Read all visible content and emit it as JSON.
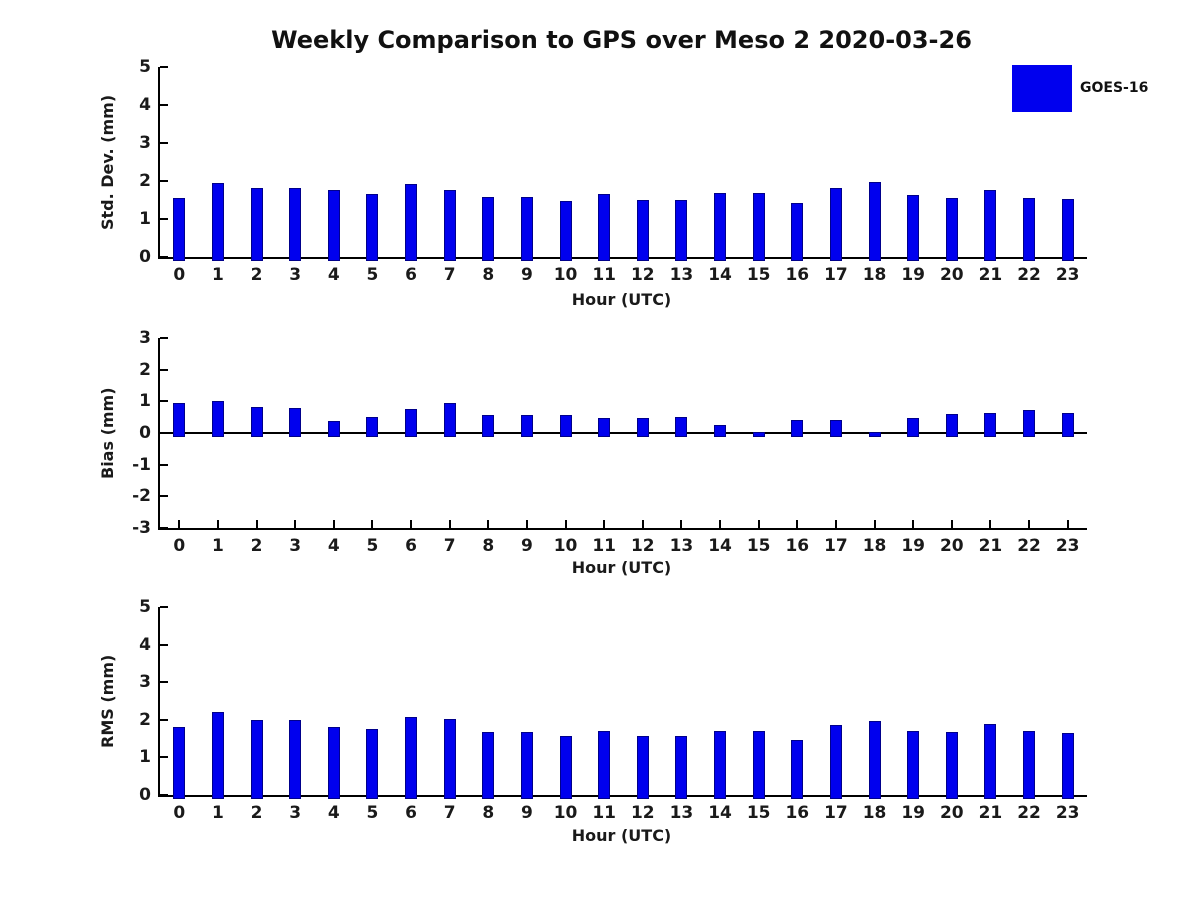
{
  "title": "Weekly Comparison to GPS over Meso 2 2020-03-26",
  "legend": {
    "label": "GOES-16",
    "position": "upper right"
  },
  "colors": {
    "bar": "#0000ee",
    "bar_edge": "#00008b",
    "axis": "#000000",
    "text": "#1a1a1a"
  },
  "chart_data": [
    {
      "type": "bar",
      "title": "",
      "xlabel": "Hour (UTC)",
      "ylabel": "Std. Dev. (mm)",
      "ylim": [
        0,
        5
      ],
      "yticks": [
        0,
        1,
        2,
        3,
        4,
        5
      ],
      "grid": false,
      "categories": [
        "0",
        "1",
        "2",
        "3",
        "4",
        "5",
        "6",
        "7",
        "8",
        "9",
        "10",
        "11",
        "12",
        "13",
        "14",
        "15",
        "16",
        "17",
        "18",
        "19",
        "20",
        "21",
        "22",
        "23"
      ],
      "series": [
        {
          "name": "GOES-16",
          "values": [
            1.55,
            1.95,
            1.82,
            1.82,
            1.77,
            1.67,
            1.92,
            1.77,
            1.59,
            1.59,
            1.48,
            1.66,
            1.5,
            1.5,
            1.68,
            1.68,
            1.42,
            1.81,
            1.97,
            1.63,
            1.56,
            1.77,
            1.56,
            1.52
          ]
        }
      ]
    },
    {
      "type": "bar",
      "title": "",
      "xlabel": "Hour (UTC)",
      "ylabel": "Bias (mm)",
      "ylim": [
        -3,
        3
      ],
      "yticks": [
        -3,
        -2,
        -1,
        0,
        1,
        2,
        3
      ],
      "grid": false,
      "categories": [
        "0",
        "1",
        "2",
        "3",
        "4",
        "5",
        "6",
        "7",
        "8",
        "9",
        "10",
        "11",
        "12",
        "13",
        "14",
        "15",
        "16",
        "17",
        "18",
        "19",
        "20",
        "21",
        "22",
        "23"
      ],
      "series": [
        {
          "name": "GOES-16",
          "values": [
            0.95,
            1.0,
            0.82,
            0.78,
            0.39,
            0.5,
            0.75,
            0.95,
            0.56,
            0.56,
            0.57,
            0.48,
            0.47,
            0.52,
            0.26,
            0.03,
            0.4,
            0.41,
            0.03,
            0.46,
            0.59,
            0.63,
            0.72,
            0.62
          ]
        }
      ]
    },
    {
      "type": "bar",
      "title": "",
      "xlabel": "Hour (UTC)",
      "ylabel": "RMS (mm)",
      "ylim": [
        0,
        5
      ],
      "yticks": [
        0,
        1,
        2,
        3,
        4,
        5
      ],
      "grid": false,
      "categories": [
        "0",
        "1",
        "2",
        "3",
        "4",
        "5",
        "6",
        "7",
        "8",
        "9",
        "10",
        "11",
        "12",
        "13",
        "14",
        "15",
        "16",
        "17",
        "18",
        "19",
        "20",
        "21",
        "22",
        "23"
      ],
      "series": [
        {
          "name": "GOES-16",
          "values": [
            1.8,
            2.2,
            1.99,
            1.99,
            1.81,
            1.75,
            2.08,
            2.02,
            1.67,
            1.67,
            1.57,
            1.7,
            1.58,
            1.58,
            1.7,
            1.7,
            1.46,
            1.86,
            1.97,
            1.7,
            1.67,
            1.89,
            1.7,
            1.64
          ]
        }
      ]
    }
  ]
}
